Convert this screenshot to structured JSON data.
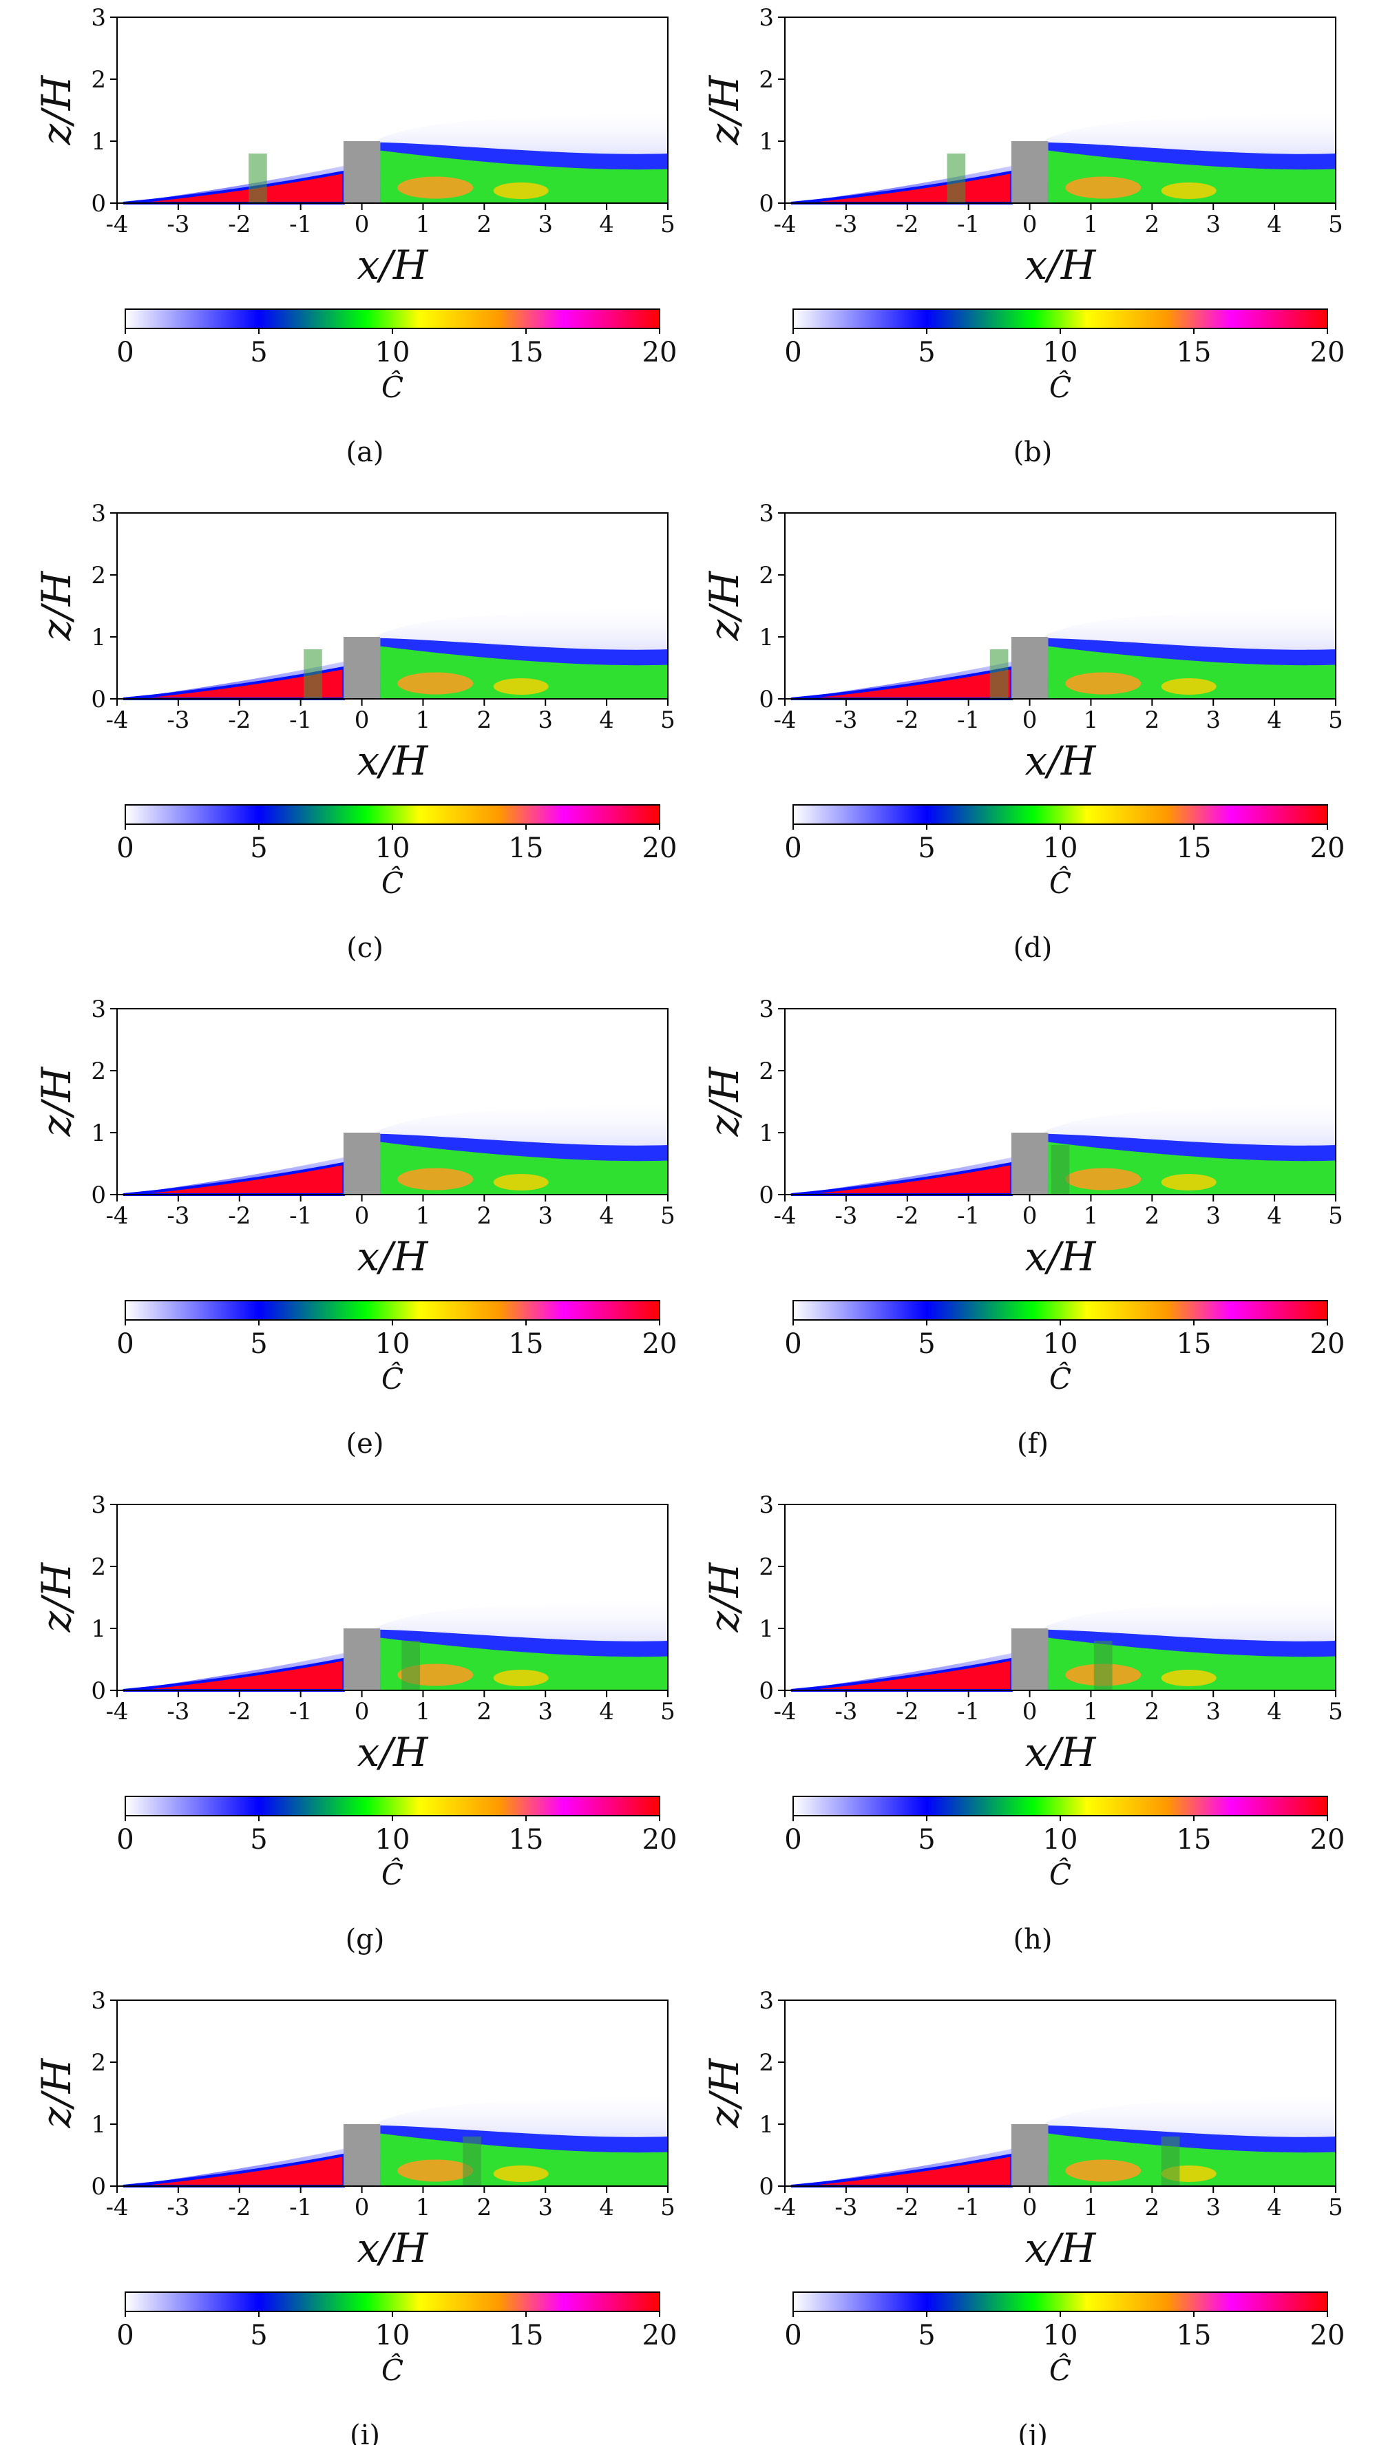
{
  "figure": {
    "type": "concentration-contour-grid",
    "description_labels": [
      "(a)",
      "(b)",
      "(c)",
      "(d)",
      "(e)",
      "(f)",
      "(g)",
      "(h)",
      "(i)",
      "(j)"
    ]
  },
  "chart_data": [
    {
      "type": "heatmap",
      "panel_label": "(a)",
      "xlabel": "x/H",
      "ylabel": "z/H",
      "xlim": [
        -4,
        5
      ],
      "ylim": [
        0,
        3
      ],
      "xticks": [
        "-4",
        "-3",
        "-2",
        "-1",
        "0",
        "1",
        "2",
        "3",
        "4",
        "5"
      ],
      "yticks": [
        "0",
        "1",
        "2",
        "3"
      ],
      "building": {
        "x": [
          -0.3,
          0.3
        ],
        "z": [
          0,
          1
        ]
      },
      "tree": {
        "x": [
          -1.85,
          -1.55
        ],
        "z": [
          0,
          0.8
        ]
      },
      "colorbar": {
        "label": "Ĉ",
        "min": 0,
        "max": 20,
        "ticks": [
          "0",
          "5",
          "10",
          "15",
          "20"
        ],
        "colormap": [
          "#ffffff",
          "#0000ff",
          "#00ff00",
          "#ffff00",
          "#ff9900",
          "#ff00ff",
          "#ff0000"
        ]
      }
    },
    {
      "type": "heatmap",
      "panel_label": "(b)",
      "xlabel": "x/H",
      "ylabel": "z/H",
      "xlim": [
        -4,
        5
      ],
      "ylim": [
        0,
        3
      ],
      "xticks": [
        "-4",
        "-3",
        "-2",
        "-1",
        "0",
        "1",
        "2",
        "3",
        "4",
        "5"
      ],
      "yticks": [
        "0",
        "1",
        "2",
        "3"
      ],
      "building": {
        "x": [
          -0.3,
          0.3
        ],
        "z": [
          0,
          1
        ]
      },
      "tree": {
        "x": [
          -1.35,
          -1.05
        ],
        "z": [
          0,
          0.8
        ]
      },
      "colorbar": {
        "label": "Ĉ",
        "min": 0,
        "max": 20,
        "ticks": [
          "0",
          "5",
          "10",
          "15",
          "20"
        ],
        "colormap": [
          "#ffffff",
          "#0000ff",
          "#00ff00",
          "#ffff00",
          "#ff9900",
          "#ff00ff",
          "#ff0000"
        ]
      }
    },
    {
      "type": "heatmap",
      "panel_label": "(c)",
      "xlabel": "x/H",
      "ylabel": "z/H",
      "xlim": [
        -4,
        5
      ],
      "ylim": [
        0,
        3
      ],
      "xticks": [
        "-4",
        "-3",
        "-2",
        "-1",
        "0",
        "1",
        "2",
        "3",
        "4",
        "5"
      ],
      "yticks": [
        "0",
        "1",
        "2",
        "3"
      ],
      "building": {
        "x": [
          -0.3,
          0.3
        ],
        "z": [
          0,
          1
        ]
      },
      "tree": {
        "x": [
          -0.95,
          -0.65
        ],
        "z": [
          0,
          0.8
        ]
      },
      "colorbar": {
        "label": "Ĉ",
        "min": 0,
        "max": 20,
        "ticks": [
          "0",
          "5",
          "10",
          "15",
          "20"
        ],
        "colormap": [
          "#ffffff",
          "#0000ff",
          "#00ff00",
          "#ffff00",
          "#ff9900",
          "#ff00ff",
          "#ff0000"
        ]
      }
    },
    {
      "type": "heatmap",
      "panel_label": "(d)",
      "xlabel": "x/H",
      "ylabel": "z/H",
      "xlim": [
        -4,
        5
      ],
      "ylim": [
        0,
        3
      ],
      "xticks": [
        "-4",
        "-3",
        "-2",
        "-1",
        "0",
        "1",
        "2",
        "3",
        "4",
        "5"
      ],
      "yticks": [
        "0",
        "1",
        "2",
        "3"
      ],
      "building": {
        "x": [
          -0.3,
          0.3
        ],
        "z": [
          0,
          1
        ]
      },
      "tree": {
        "x": [
          -0.65,
          -0.35
        ],
        "z": [
          0,
          0.8
        ]
      },
      "colorbar": {
        "label": "Ĉ",
        "min": 0,
        "max": 20,
        "ticks": [
          "0",
          "5",
          "10",
          "15",
          "20"
        ],
        "colormap": [
          "#ffffff",
          "#0000ff",
          "#00ff00",
          "#ffff00",
          "#ff9900",
          "#ff00ff",
          "#ff0000"
        ]
      }
    },
    {
      "type": "heatmap",
      "panel_label": "(e)",
      "xlabel": "x/H",
      "ylabel": "z/H",
      "xlim": [
        -4,
        5
      ],
      "ylim": [
        0,
        3
      ],
      "xticks": [
        "-4",
        "-3",
        "-2",
        "-1",
        "0",
        "1",
        "2",
        "3",
        "4",
        "5"
      ],
      "yticks": [
        "0",
        "1",
        "2",
        "3"
      ],
      "building": {
        "x": [
          -0.3,
          0.3
        ],
        "z": [
          0,
          1
        ]
      },
      "tree": null,
      "colorbar": {
        "label": "Ĉ",
        "min": 0,
        "max": 20,
        "ticks": [
          "0",
          "5",
          "10",
          "15",
          "20"
        ],
        "colormap": [
          "#ffffff",
          "#0000ff",
          "#00ff00",
          "#ffff00",
          "#ff9900",
          "#ff00ff",
          "#ff0000"
        ]
      }
    },
    {
      "type": "heatmap",
      "panel_label": "(f)",
      "xlabel": "x/H",
      "ylabel": "z/H",
      "xlim": [
        -4,
        5
      ],
      "ylim": [
        0,
        3
      ],
      "xticks": [
        "-4",
        "-3",
        "-2",
        "-1",
        "0",
        "1",
        "2",
        "3",
        "4",
        "5"
      ],
      "yticks": [
        "0",
        "1",
        "2",
        "3"
      ],
      "building": {
        "x": [
          -0.3,
          0.3
        ],
        "z": [
          0,
          1
        ]
      },
      "tree": {
        "x": [
          0.35,
          0.65
        ],
        "z": [
          0,
          0.8
        ]
      },
      "colorbar": {
        "label": "Ĉ",
        "min": 0,
        "max": 20,
        "ticks": [
          "0",
          "5",
          "10",
          "15",
          "20"
        ],
        "colormap": [
          "#ffffff",
          "#0000ff",
          "#00ff00",
          "#ffff00",
          "#ff9900",
          "#ff00ff",
          "#ff0000"
        ]
      }
    },
    {
      "type": "heatmap",
      "panel_label": "(g)",
      "xlabel": "x/H",
      "ylabel": "z/H",
      "xlim": [
        -4,
        5
      ],
      "ylim": [
        0,
        3
      ],
      "xticks": [
        "-4",
        "-3",
        "-2",
        "-1",
        "0",
        "1",
        "2",
        "3",
        "4",
        "5"
      ],
      "yticks": [
        "0",
        "1",
        "2",
        "3"
      ],
      "building": {
        "x": [
          -0.3,
          0.3
        ],
        "z": [
          0,
          1
        ]
      },
      "tree": {
        "x": [
          0.65,
          0.95
        ],
        "z": [
          0,
          0.8
        ]
      },
      "colorbar": {
        "label": "Ĉ",
        "min": 0,
        "max": 20,
        "ticks": [
          "0",
          "5",
          "10",
          "15",
          "20"
        ],
        "colormap": [
          "#ffffff",
          "#0000ff",
          "#00ff00",
          "#ffff00",
          "#ff9900",
          "#ff00ff",
          "#ff0000"
        ]
      }
    },
    {
      "type": "heatmap",
      "panel_label": "(h)",
      "xlabel": "x/H",
      "ylabel": "z/H",
      "xlim": [
        -4,
        5
      ],
      "ylim": [
        0,
        3
      ],
      "xticks": [
        "-4",
        "-3",
        "-2",
        "-1",
        "0",
        "1",
        "2",
        "3",
        "4",
        "5"
      ],
      "yticks": [
        "0",
        "1",
        "2",
        "3"
      ],
      "building": {
        "x": [
          -0.3,
          0.3
        ],
        "z": [
          0,
          1
        ]
      },
      "tree": {
        "x": [
          1.05,
          1.35
        ],
        "z": [
          0,
          0.8
        ]
      },
      "colorbar": {
        "label": "Ĉ",
        "min": 0,
        "max": 20,
        "ticks": [
          "0",
          "5",
          "10",
          "15",
          "20"
        ],
        "colormap": [
          "#ffffff",
          "#0000ff",
          "#00ff00",
          "#ffff00",
          "#ff9900",
          "#ff00ff",
          "#ff0000"
        ]
      }
    },
    {
      "type": "heatmap",
      "panel_label": "(i)",
      "xlabel": "x/H",
      "ylabel": "z/H",
      "xlim": [
        -4,
        5
      ],
      "ylim": [
        0,
        3
      ],
      "xticks": [
        "-4",
        "-3",
        "-2",
        "-1",
        "0",
        "1",
        "2",
        "3",
        "4",
        "5"
      ],
      "yticks": [
        "0",
        "1",
        "2",
        "3"
      ],
      "building": {
        "x": [
          -0.3,
          0.3
        ],
        "z": [
          0,
          1
        ]
      },
      "tree": {
        "x": [
          1.65,
          1.95
        ],
        "z": [
          0,
          0.8
        ]
      },
      "colorbar": {
        "label": "Ĉ",
        "min": 0,
        "max": 20,
        "ticks": [
          "0",
          "5",
          "10",
          "15",
          "20"
        ],
        "colormap": [
          "#ffffff",
          "#0000ff",
          "#00ff00",
          "#ffff00",
          "#ff9900",
          "#ff00ff",
          "#ff0000"
        ]
      }
    },
    {
      "type": "heatmap",
      "panel_label": "(j)",
      "xlabel": "x/H",
      "ylabel": "z/H",
      "xlim": [
        -4,
        5
      ],
      "ylim": [
        0,
        3
      ],
      "xticks": [
        "-4",
        "-3",
        "-2",
        "-1",
        "0",
        "1",
        "2",
        "3",
        "4",
        "5"
      ],
      "yticks": [
        "0",
        "1",
        "2",
        "3"
      ],
      "building": {
        "x": [
          -0.3,
          0.3
        ],
        "z": [
          0,
          1
        ]
      },
      "tree": {
        "x": [
          2.15,
          2.45
        ],
        "z": [
          0,
          0.8
        ]
      },
      "colorbar": {
        "label": "Ĉ",
        "min": 0,
        "max": 20,
        "ticks": [
          "0",
          "5",
          "10",
          "15",
          "20"
        ],
        "colormap": [
          "#ffffff",
          "#0000ff",
          "#00ff00",
          "#ffff00",
          "#ff9900",
          "#ff00ff",
          "#ff0000"
        ]
      }
    }
  ]
}
